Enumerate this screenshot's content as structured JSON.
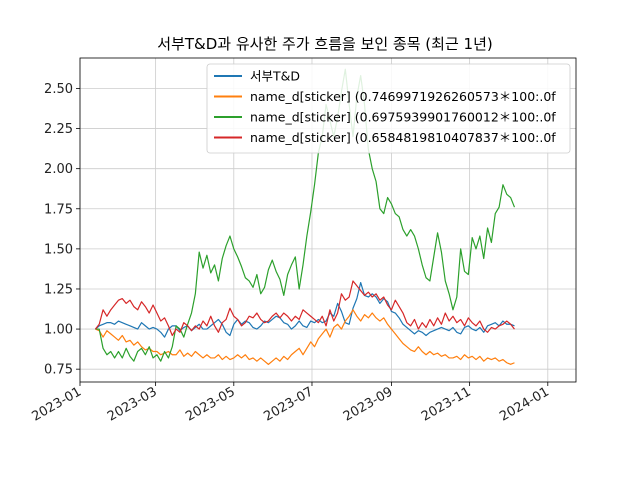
{
  "chart_data": {
    "type": "line",
    "title": "서부T&D과 유사한 주가 흐름을 보인 종목 (최근 1년)",
    "xlabel": "",
    "ylabel": "",
    "xlim": [
      "2023-01-01",
      "2024-01-23"
    ],
    "ylim": [
      0.67,
      2.69
    ],
    "grid": true,
    "legend_position": "top-right",
    "x_ticks": [
      "2023-01",
      "2023-03",
      "2023-05",
      "2023-07",
      "2023-09",
      "2023-11",
      "2024-01"
    ],
    "y_ticks": [
      "0.75",
      "1.00",
      "1.25",
      "1.50",
      "1.75",
      "2.00",
      "2.25",
      "2.50"
    ],
    "x_start": "2023-01-13",
    "x_step_days": 3,
    "series": [
      {
        "name": "서부T&D",
        "color": "#1f77b4",
        "values": [
          1.0,
          1.02,
          1.03,
          1.04,
          1.04,
          1.03,
          1.05,
          1.04,
          1.03,
          1.02,
          1.01,
          1.0,
          1.04,
          1.02,
          1.0,
          1.01,
          1.0,
          0.98,
          0.95,
          1.0,
          1.02,
          1.02,
          0.99,
          1.01,
          1.02,
          0.99,
          1.01,
          1.03,
          1.0,
          1.0,
          1.02,
          1.04,
          1.06,
          1.03,
          0.98,
          0.96,
          1.03,
          1.06,
          1.03,
          1.05,
          1.04,
          1.01,
          1.0,
          1.02,
          1.05,
          1.04,
          1.06,
          1.08,
          1.07,
          1.04,
          1.03,
          1.0,
          1.02,
          1.05,
          1.02,
          1.01,
          1.05,
          1.04,
          1.06,
          1.04,
          1.05,
          1.1,
          1.08,
          1.16,
          1.11,
          1.04,
          1.03,
          1.13,
          1.19,
          1.29,
          1.21,
          1.2,
          1.22,
          1.2,
          1.16,
          1.19,
          1.17,
          1.11,
          1.1,
          1.07,
          1.03,
          1.01,
          0.99,
          0.97,
          0.99,
          0.98,
          0.96,
          0.98,
          0.99,
          1.0,
          1.01,
          1.0,
          0.99,
          1.01,
          0.98,
          0.97,
          1.01,
          1.02,
          1.0,
          0.99,
          1.01,
          0.98,
          1.02,
          1.03,
          1.04,
          1.02,
          1.05,
          1.03,
          1.03,
          1.02
        ]
      },
      {
        "name": "name_d[sticker]  (0.7469971926260573＊100:.0f",
        "color": "#ff7f0e",
        "values": [
          1.0,
          0.99,
          0.95,
          0.99,
          0.97,
          0.95,
          0.93,
          0.96,
          0.92,
          0.93,
          0.9,
          0.92,
          0.89,
          0.87,
          0.88,
          0.86,
          0.86,
          0.84,
          0.85,
          0.86,
          0.84,
          0.84,
          0.87,
          0.83,
          0.85,
          0.83,
          0.86,
          0.84,
          0.82,
          0.84,
          0.82,
          0.82,
          0.84,
          0.81,
          0.83,
          0.81,
          0.82,
          0.84,
          0.82,
          0.84,
          0.81,
          0.82,
          0.8,
          0.82,
          0.8,
          0.78,
          0.8,
          0.82,
          0.8,
          0.83,
          0.81,
          0.84,
          0.86,
          0.88,
          0.84,
          0.88,
          0.92,
          0.89,
          0.94,
          0.97,
          1.0,
          0.95,
          1.01,
          1.03,
          1.0,
          1.05,
          1.08,
          1.12,
          1.08,
          1.05,
          1.09,
          1.07,
          1.1,
          1.07,
          1.05,
          1.07,
          1.03,
          1.0,
          0.97,
          0.94,
          0.91,
          0.89,
          0.87,
          0.86,
          0.89,
          0.86,
          0.84,
          0.86,
          0.84,
          0.85,
          0.83,
          0.84,
          0.82,
          0.82,
          0.83,
          0.81,
          0.84,
          0.82,
          0.83,
          0.81,
          0.83,
          0.8,
          0.82,
          0.81,
          0.82,
          0.8,
          0.81,
          0.79,
          0.78,
          0.79
        ]
      },
      {
        "name": "name_d[sticker]  (0.6975939901760012＊100:.0f",
        "color": "#2ca02c",
        "values": [
          1.0,
          1.0,
          0.88,
          0.84,
          0.86,
          0.82,
          0.86,
          0.82,
          0.88,
          0.83,
          0.8,
          0.86,
          0.88,
          0.84,
          0.89,
          0.82,
          0.84,
          0.8,
          0.86,
          0.82,
          0.89,
          1.02,
          1.0,
          0.95,
          1.03,
          1.1,
          1.22,
          1.48,
          1.38,
          1.46,
          1.35,
          1.4,
          1.3,
          1.44,
          1.52,
          1.58,
          1.5,
          1.45,
          1.39,
          1.32,
          1.3,
          1.26,
          1.34,
          1.22,
          1.26,
          1.37,
          1.43,
          1.36,
          1.31,
          1.21,
          1.34,
          1.4,
          1.45,
          1.25,
          1.4,
          1.58,
          1.73,
          1.9,
          2.1,
          2.2,
          2.4,
          2.3,
          2.2,
          2.32,
          2.48,
          2.62,
          2.4,
          2.2,
          2.45,
          2.58,
          2.4,
          2.12,
          2.0,
          1.92,
          1.75,
          1.72,
          1.82,
          1.78,
          1.72,
          1.7,
          1.62,
          1.58,
          1.62,
          1.58,
          1.5,
          1.4,
          1.32,
          1.3,
          1.45,
          1.6,
          1.48,
          1.3,
          1.22,
          1.12,
          1.2,
          1.5,
          1.36,
          1.34,
          1.57,
          1.5,
          1.58,
          1.44,
          1.63,
          1.54,
          1.72,
          1.76,
          1.9,
          1.84,
          1.82,
          1.76
        ]
      },
      {
        "name": "name_d[sticker]  (0.6584819810407837＊100:.0f",
        "color": "#d62728",
        "values": [
          1.0,
          1.03,
          1.12,
          1.08,
          1.12,
          1.15,
          1.18,
          1.19,
          1.16,
          1.18,
          1.14,
          1.12,
          1.17,
          1.14,
          1.1,
          1.15,
          1.1,
          1.05,
          1.07,
          1.02,
          0.96,
          1.0,
          0.98,
          1.04,
          1.02,
          0.99,
          1.02,
          1.0,
          1.05,
          1.02,
          1.08,
          1.02,
          0.98,
          1.04,
          1.06,
          1.13,
          1.08,
          1.06,
          1.02,
          1.04,
          1.08,
          1.07,
          1.1,
          1.06,
          1.04,
          1.05,
          1.08,
          1.1,
          1.07,
          1.1,
          1.08,
          1.05,
          1.08,
          1.06,
          1.12,
          1.1,
          1.08,
          1.06,
          1.04,
          1.08,
          1.02,
          1.12,
          1.05,
          1.1,
          1.22,
          1.18,
          1.2,
          1.3,
          1.27,
          1.24,
          1.21,
          1.23,
          1.2,
          1.22,
          1.18,
          1.2,
          1.15,
          1.12,
          1.18,
          1.14,
          1.1,
          1.04,
          1.02,
          1.06,
          1.0,
          1.04,
          1.01,
          1.06,
          1.02,
          1.07,
          1.03,
          1.1,
          1.05,
          1.08,
          1.04,
          1.06,
          1.02,
          1.07,
          1.04,
          1.02,
          1.05,
          1.0,
          0.98,
          1.01,
          1.0,
          1.02,
          1.03,
          1.05,
          1.03,
          1.0
        ]
      }
    ]
  }
}
